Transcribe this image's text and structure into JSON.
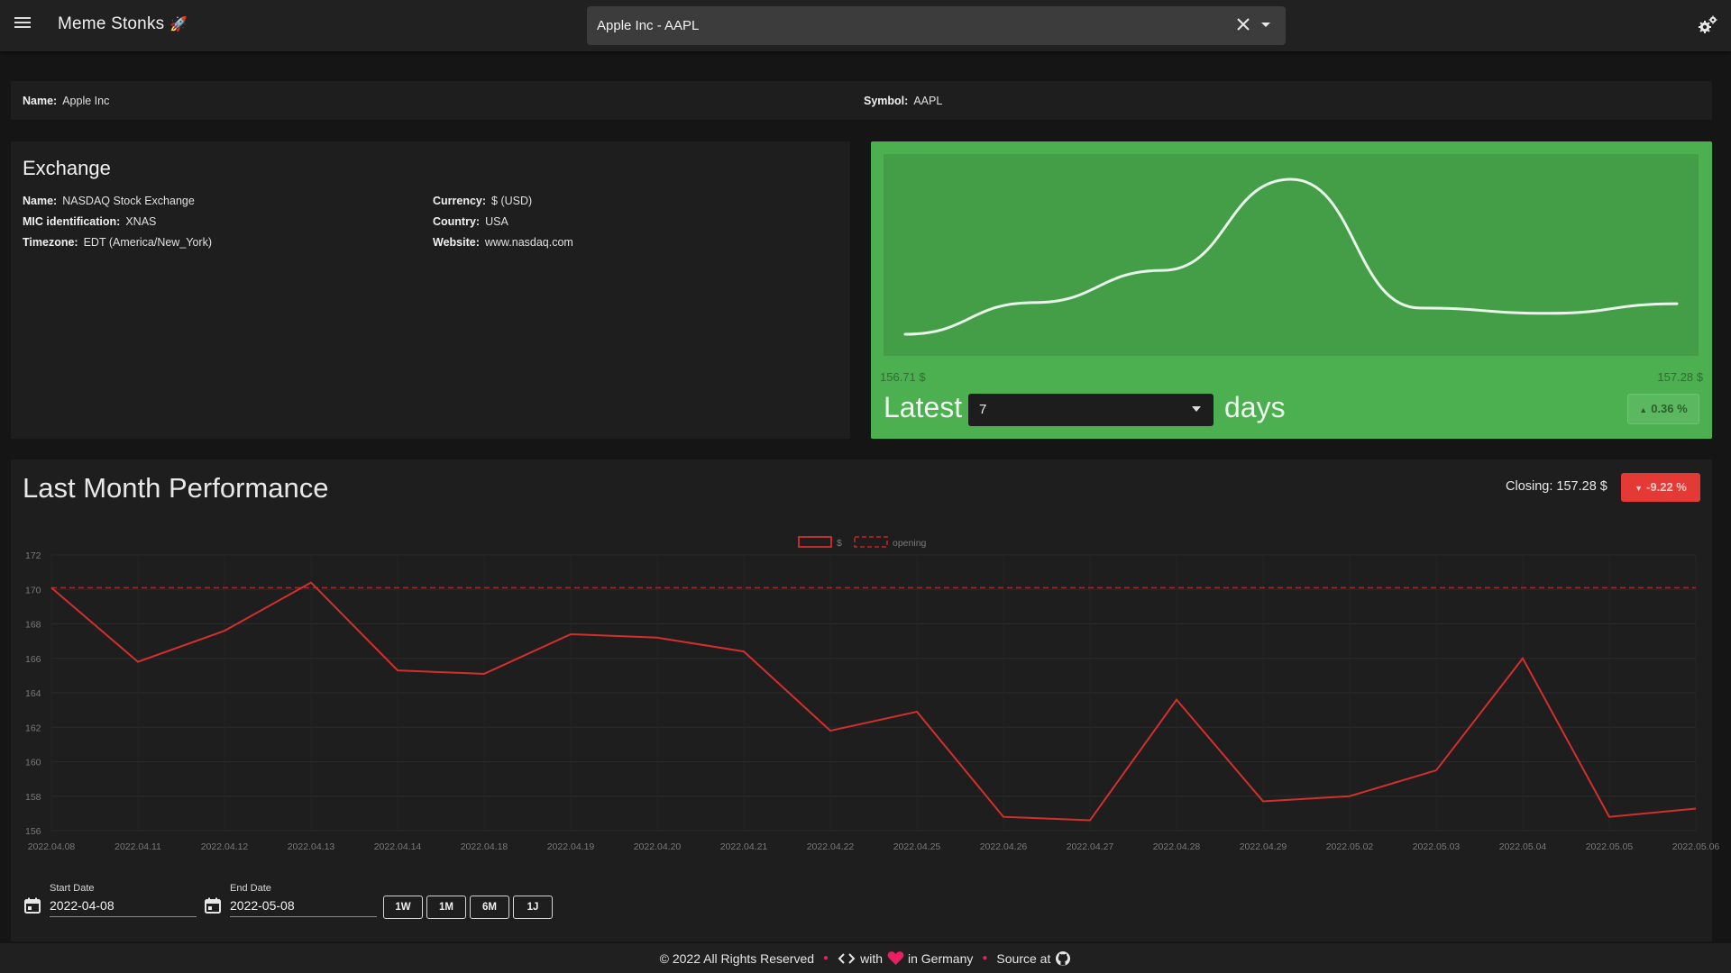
{
  "app": {
    "title": "Meme Stonks",
    "rocket_glyph": "🚀",
    "menu_icon": "menu-icon",
    "settings_icon": "settings-icon"
  },
  "search": {
    "value": "Apple Inc - AAPL",
    "clear_icon": "close-icon",
    "dropdown_icon": "chevron-down-icon"
  },
  "info": {
    "name_label": "Name:",
    "name_value": "Apple Inc",
    "symbol_label": "Symbol:",
    "symbol_value": "AAPL"
  },
  "exchange": {
    "title": "Exchange",
    "name_label": "Name:",
    "name_value": "NASDAQ Stock Exchange",
    "mic_label": "MIC identification:",
    "mic_value": "XNAS",
    "timezone_label": "Timezone:",
    "timezone_value": "EDT (America/New_York)",
    "currency_label": "Currency:",
    "currency_value": "$ (USD)",
    "country_label": "Country:",
    "country_value": "USA",
    "website_label": "Website:",
    "website_value": "www.nasdaq.com"
  },
  "price_card": {
    "accent_color": "#4caf50",
    "start_price": "156.71 $",
    "end_price": "157.28 $",
    "latest_label": "Latest",
    "days_value": "7",
    "days_label": "days",
    "change_percent": "0.36 %",
    "change_direction": "up",
    "sparkline": [
      156.71,
      157.3,
      157.9,
      159.6,
      157.2,
      157.1,
      157.28
    ]
  },
  "performance": {
    "title": "Last Month Performance",
    "closing_text": "Closing: 157.28 $",
    "change_percent": "-9.22 %",
    "change_direction": "down",
    "negative_color": "#e53935"
  },
  "chart_data": {
    "type": "line",
    "x": [
      "2022.04.08",
      "2022.04.11",
      "2022.04.12",
      "2022.04.13",
      "2022.04.14",
      "2022.04.18",
      "2022.04.19",
      "2022.04.20",
      "2022.04.21",
      "2022.04.22",
      "2022.04.25",
      "2022.04.26",
      "2022.04.27",
      "2022.04.28",
      "2022.04.29",
      "2022.05.02",
      "2022.05.03",
      "2022.05.04",
      "2022.05.05",
      "2022.05.06"
    ],
    "series": [
      {
        "name": "$",
        "values": [
          170.1,
          165.8,
          167.6,
          170.4,
          165.3,
          165.1,
          167.4,
          167.2,
          166.4,
          161.8,
          162.9,
          156.8,
          156.6,
          163.6,
          157.7,
          158.0,
          159.5,
          166.0,
          156.8,
          157.28
        ],
        "color": "#d32f2f",
        "style": "solid"
      },
      {
        "name": "opening",
        "values": [
          170.1,
          170.1,
          170.1,
          170.1,
          170.1,
          170.1,
          170.1,
          170.1,
          170.1,
          170.1,
          170.1,
          170.1,
          170.1,
          170.1,
          170.1,
          170.1,
          170.1,
          170.1,
          170.1,
          170.1
        ],
        "color": "#a62828",
        "style": "dashed"
      }
    ],
    "yticks": [
      "156",
      "158",
      "160",
      "162",
      "164",
      "166",
      "168",
      "170",
      "172"
    ],
    "ylim": [
      156,
      172
    ],
    "grid": true,
    "legend_position": "top-center"
  },
  "date_range": {
    "start_label": "Start Date",
    "start_value": "2022-04-08",
    "end_label": "End Date",
    "end_value": "2022-05-08",
    "calendar_icon": "calendar-icon",
    "buttons": [
      "1W",
      "1M",
      "6M",
      "1J"
    ]
  },
  "footer": {
    "copyright": "© 2022 All Rights Reserved",
    "with_text": "with",
    "in_text": "in Germany",
    "source_text": "Source at",
    "heart_color": "#e91e63"
  }
}
